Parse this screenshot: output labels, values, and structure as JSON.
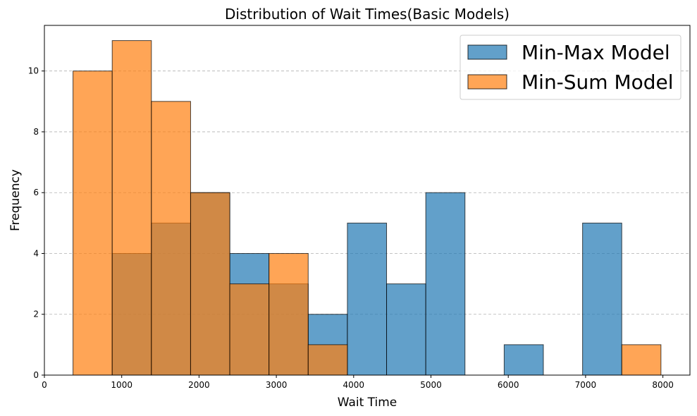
{
  "chart_data": {
    "type": "bar",
    "title": "Distribution of Wait Times(Basic Models)",
    "xlabel": "Wait Time",
    "ylabel": "Frequency",
    "xlim": [
      0,
      8350
    ],
    "ylim": [
      0,
      11.5
    ],
    "xticks": [
      0,
      1000,
      2000,
      3000,
      4000,
      5000,
      6000,
      7000,
      8000
    ],
    "yticks": [
      0,
      2,
      4,
      6,
      8,
      10
    ],
    "grid": "y-dashed",
    "legend_position": "top-right",
    "bin_edges": [
      370,
      877,
      1384,
      1891,
      2398,
      2905,
      3412,
      3919,
      4426,
      4933,
      5440,
      5947,
      6454,
      6961,
      7468,
      7975
    ],
    "series": [
      {
        "name": "Min-Max Model",
        "color": "#1f77b4",
        "values": [
          0,
          4,
          5,
          6,
          4,
          3,
          2,
          5,
          3,
          6,
          0,
          1,
          0,
          5,
          0
        ]
      },
      {
        "name": "Min-Sum Model",
        "color": "#ff7f0e",
        "values": [
          10,
          11,
          9,
          6,
          3,
          4,
          1,
          0,
          0,
          0,
          0,
          0,
          0,
          0,
          1
        ]
      }
    ]
  }
}
